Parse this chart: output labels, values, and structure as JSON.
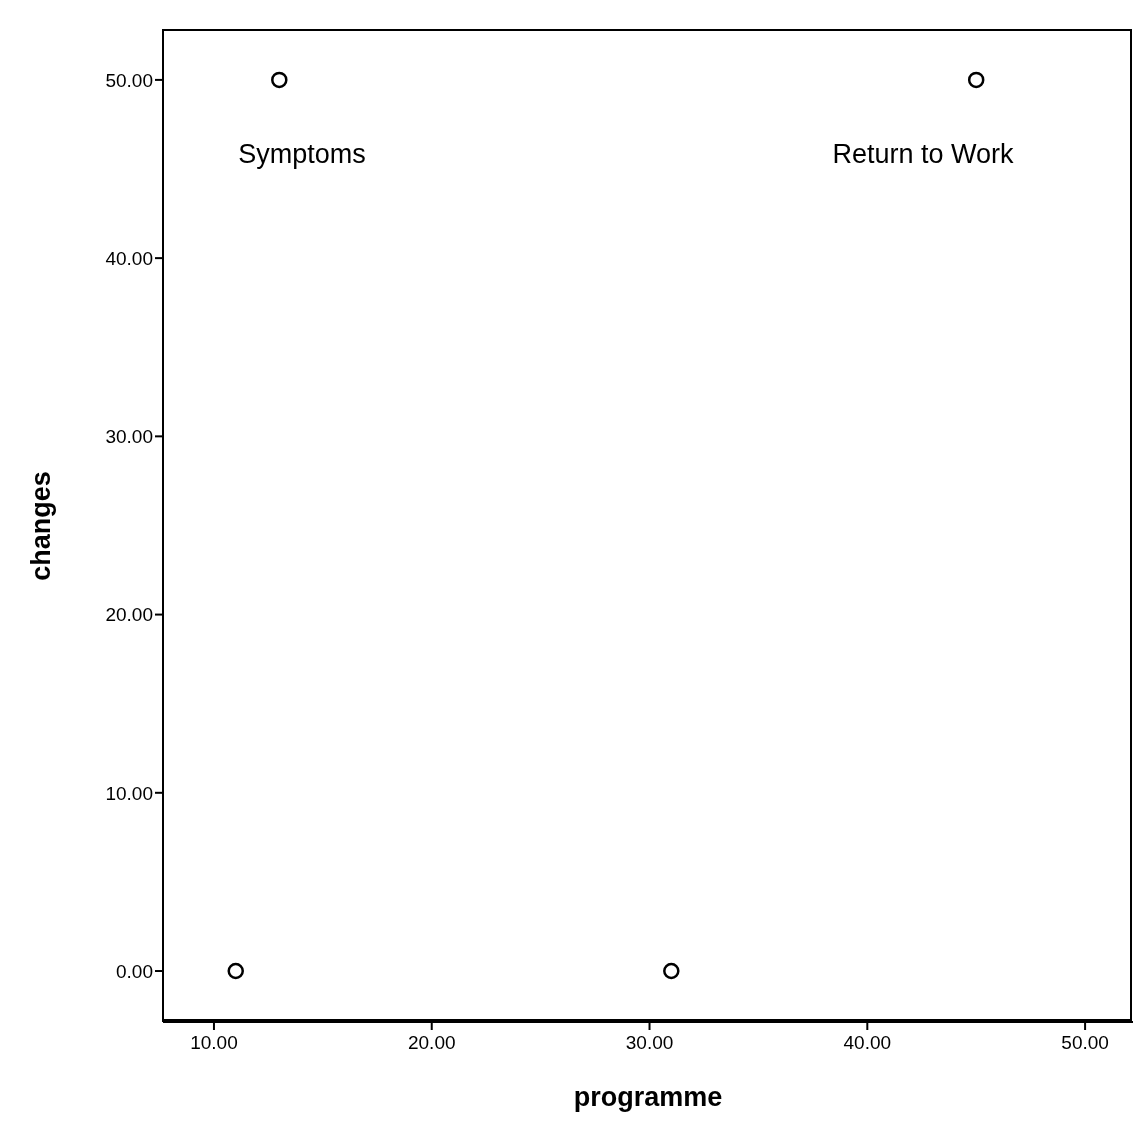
{
  "chart_data": {
    "type": "scatter",
    "xlabel": "programme",
    "ylabel": "changes",
    "x": [
      11,
      13,
      31,
      45
    ],
    "values": [
      0,
      50,
      0,
      50
    ],
    "color": "#000000",
    "marker": "circle",
    "grid": false,
    "legend": false,
    "xlim": [
      7.66,
      52.2
    ],
    "ylim": [
      -2.86,
      52.8
    ],
    "xticks": [
      {
        "value": 10,
        "label": "10.00"
      },
      {
        "value": 20,
        "label": "20.00"
      },
      {
        "value": 30,
        "label": "30.00"
      },
      {
        "value": 40,
        "label": "40.00"
      },
      {
        "value": 50,
        "label": "50.00"
      }
    ],
    "yticks": [
      {
        "value": 0,
        "label": "0.00"
      },
      {
        "value": 10,
        "label": "10.00"
      },
      {
        "value": 20,
        "label": "20.00"
      },
      {
        "value": 30,
        "label": "30.00"
      },
      {
        "value": 40,
        "label": "40.00"
      },
      {
        "value": 50,
        "label": "50.00"
      }
    ],
    "annotations": [
      "Symptoms",
      "Return to Work"
    ]
  }
}
